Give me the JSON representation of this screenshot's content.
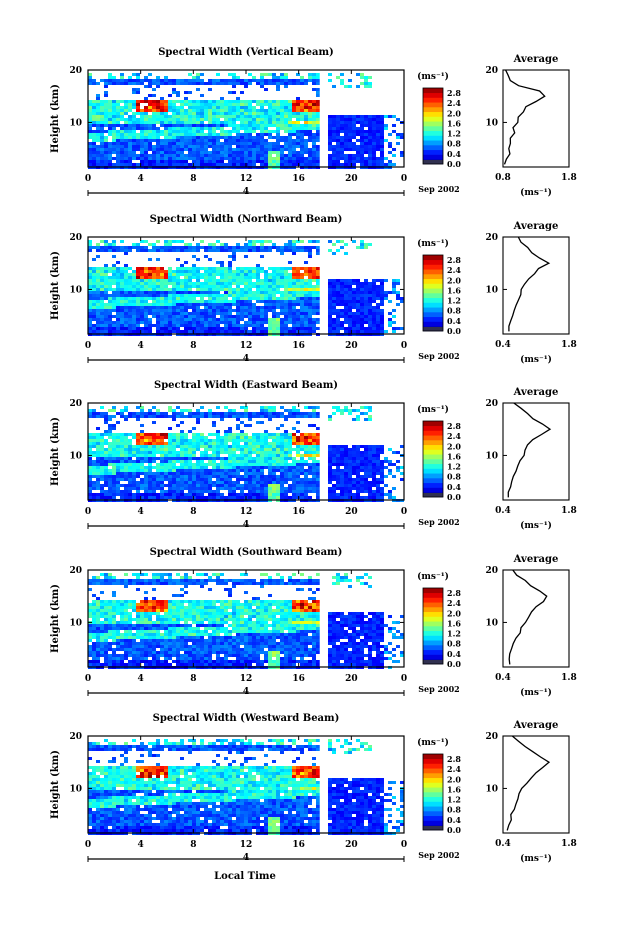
{
  "figure": {
    "ylabel": "Height (km)",
    "xlabel": "Local Time",
    "date_label": "Sep 2002",
    "day_label": "4",
    "cb_unit": "(ms⁻¹)",
    "avg_title": "Average",
    "avg_xlabel": "(ms⁻¹)"
  },
  "chart_data": [
    {
      "type": "heatmap",
      "title": "Spectral Width (Vertical Beam)",
      "x_ticks": [
        "0",
        "4",
        "8",
        "12",
        "16",
        "20",
        "0"
      ],
      "xlim": [
        0,
        24
      ],
      "y_ticks": [
        "10",
        "20"
      ],
      "ylim": [
        1.5,
        20
      ],
      "colorbar": {
        "ticks": [
          "0.0",
          "0.4",
          "0.8",
          "1.2",
          "1.6",
          "2.0",
          "2.4",
          "2.8"
        ],
        "range": [
          0,
          3.0
        ]
      },
      "profile": {
        "title": "Average",
        "xlim": [
          0.8,
          1.8
        ],
        "x_ticks": [
          "0.8",
          "1.8"
        ],
        "y_ticks": [
          "10",
          "20"
        ],
        "heights": [
          2,
          3,
          4,
          5,
          6,
          7,
          8,
          9,
          10,
          11,
          12,
          13,
          14,
          15,
          16,
          17,
          18,
          19,
          20
        ],
        "values": [
          0.85,
          0.86,
          0.88,
          0.87,
          0.9,
          0.92,
          0.95,
          0.98,
          1.0,
          1.02,
          1.08,
          1.15,
          1.3,
          1.45,
          1.35,
          1.05,
          0.92,
          0.88,
          0.85
        ]
      }
    },
    {
      "type": "heatmap",
      "title": "Spectral Width (Northward Beam)",
      "x_ticks": [
        "0",
        "4",
        "8",
        "12",
        "16",
        "20",
        "0"
      ],
      "xlim": [
        0,
        24
      ],
      "y_ticks": [
        "10",
        "20"
      ],
      "ylim": [
        1.5,
        20
      ],
      "colorbar": {
        "ticks": [
          "0.0",
          "0.4",
          "0.8",
          "1.2",
          "1.6",
          "2.0",
          "2.4",
          "2.8"
        ],
        "range": [
          0,
          3.0
        ]
      },
      "profile": {
        "title": "Average",
        "xlim": [
          0.4,
          1.8
        ],
        "x_ticks": [
          "0.4",
          "1.8"
        ],
        "y_ticks": [
          "10",
          "20"
        ],
        "heights": [
          2,
          3,
          4,
          5,
          6,
          7,
          8,
          9,
          10,
          11,
          12,
          13,
          14,
          15,
          16,
          17,
          18,
          19,
          20
        ],
        "values": [
          0.5,
          0.52,
          0.55,
          0.58,
          0.62,
          0.7,
          0.72,
          0.75,
          0.8,
          0.85,
          0.95,
          1.05,
          1.15,
          1.35,
          1.2,
          1.0,
          0.9,
          0.8,
          0.7
        ]
      }
    },
    {
      "type": "heatmap",
      "title": "Spectral Width (Eastward Beam)",
      "x_ticks": [
        "0",
        "4",
        "8",
        "12",
        "16",
        "20",
        "0"
      ],
      "xlim": [
        0,
        24
      ],
      "y_ticks": [
        "10",
        "20"
      ],
      "ylim": [
        1.5,
        20
      ],
      "colorbar": {
        "ticks": [
          "0.0",
          "0.4",
          "0.8",
          "1.2",
          "1.6",
          "2.0",
          "2.4",
          "2.8"
        ],
        "range": [
          0,
          3.0
        ]
      },
      "profile": {
        "title": "Average",
        "xlim": [
          0.4,
          1.8
        ],
        "x_ticks": [
          "0.4",
          "1.8"
        ],
        "y_ticks": [
          "10",
          "20"
        ],
        "heights": [
          2,
          3,
          4,
          5,
          6,
          7,
          8,
          9,
          10,
          11,
          12,
          13,
          14,
          15,
          16,
          17,
          18,
          19,
          20
        ],
        "values": [
          0.5,
          0.52,
          0.55,
          0.58,
          0.62,
          0.68,
          0.72,
          0.78,
          0.82,
          0.88,
          0.95,
          1.05,
          1.2,
          1.4,
          1.25,
          1.05,
          0.9,
          0.75,
          0.6
        ]
      }
    },
    {
      "type": "heatmap",
      "title": "Spectral Width (Southward Beam)",
      "x_ticks": [
        "0",
        "4",
        "8",
        "12",
        "16",
        "20",
        "0"
      ],
      "xlim": [
        0,
        24
      ],
      "y_ticks": [
        "10",
        "20"
      ],
      "ylim": [
        1.5,
        20
      ],
      "colorbar": {
        "ticks": [
          "0.0",
          "0.4",
          "0.8",
          "1.2",
          "1.6",
          "2.0",
          "2.4",
          "2.8"
        ],
        "range": [
          0,
          3.0
        ]
      },
      "profile": {
        "title": "Average",
        "xlim": [
          0.4,
          1.8
        ],
        "x_ticks": [
          "0.4",
          "1.8"
        ],
        "y_ticks": [
          "10",
          "20"
        ],
        "heights": [
          2,
          3,
          4,
          5,
          6,
          7,
          8,
          9,
          10,
          11,
          12,
          13,
          14,
          15,
          16,
          17,
          18,
          19,
          20
        ],
        "values": [
          0.52,
          0.54,
          0.56,
          0.6,
          0.64,
          0.7,
          0.74,
          0.8,
          0.85,
          0.92,
          1.0,
          1.1,
          1.25,
          1.35,
          1.2,
          1.0,
          0.85,
          0.72,
          0.6
        ]
      }
    },
    {
      "type": "heatmap",
      "title": "Spectral Width (Westward Beam)",
      "x_ticks": [
        "0",
        "4",
        "8",
        "12",
        "16",
        "20",
        "0"
      ],
      "xlim": [
        0,
        24
      ],
      "y_ticks": [
        "10",
        "20"
      ],
      "ylim": [
        1.5,
        20
      ],
      "colorbar": {
        "ticks": [
          "0.0",
          "0.4",
          "0.8",
          "1.2",
          "1.6",
          "2.0",
          "2.4",
          "2.8"
        ],
        "range": [
          0,
          3.0
        ]
      },
      "profile": {
        "title": "Average",
        "xlim": [
          0.4,
          1.8
        ],
        "x_ticks": [
          "0.4",
          "1.8"
        ],
        "y_ticks": [
          "10",
          "20"
        ],
        "heights": [
          2,
          3,
          4,
          5,
          6,
          7,
          8,
          9,
          10,
          11,
          12,
          13,
          14,
          15,
          16,
          17,
          18,
          19,
          20
        ],
        "values": [
          0.5,
          0.52,
          0.55,
          0.58,
          0.62,
          0.66,
          0.7,
          0.76,
          0.82,
          0.88,
          0.98,
          1.08,
          1.22,
          1.38,
          1.22,
          1.02,
          0.88,
          0.74,
          0.62
        ]
      }
    }
  ]
}
